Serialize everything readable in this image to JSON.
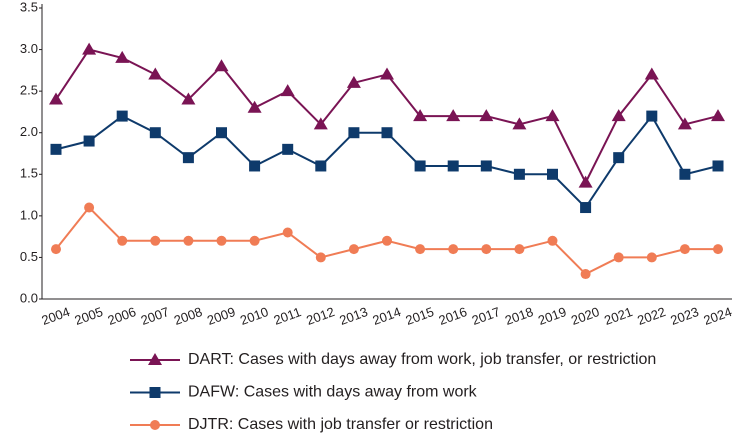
{
  "chart_data": {
    "type": "line",
    "categories": [
      "2004",
      "2005",
      "2006",
      "2007",
      "2008",
      "2009",
      "2010",
      "2011",
      "2012",
      "2013",
      "2014",
      "2015",
      "2016",
      "2017",
      "2018",
      "2019",
      "2020",
      "2021",
      "2022",
      "2023",
      "2024"
    ],
    "series": [
      {
        "name": "DART: Cases with days away from work, job transfer, or restriction",
        "color": "#7a1454",
        "marker": "triangle",
        "values": [
          2.4,
          3.0,
          2.9,
          2.7,
          2.4,
          2.8,
          2.3,
          2.5,
          2.1,
          2.6,
          2.7,
          2.2,
          2.2,
          2.2,
          2.1,
          2.2,
          1.4,
          2.2,
          2.7,
          2.1,
          2.2
        ]
      },
      {
        "name": "DAFW: Cases with days away from work",
        "color": "#0e3a6b",
        "marker": "square",
        "values": [
          1.8,
          1.9,
          2.2,
          2.0,
          1.7,
          2.0,
          1.6,
          1.8,
          1.6,
          2.0,
          2.0,
          1.6,
          1.6,
          1.6,
          1.5,
          1.5,
          1.1,
          1.7,
          2.2,
          1.5,
          1.6
        ]
      },
      {
        "name": "DJTR: Cases with job transfer or restriction",
        "color": "#f07c55",
        "marker": "circle",
        "values": [
          0.6,
          1.1,
          0.7,
          0.7,
          0.7,
          0.7,
          0.7,
          0.8,
          0.5,
          0.6,
          0.7,
          0.6,
          0.6,
          0.6,
          0.6,
          0.7,
          0.3,
          0.5,
          0.5,
          0.6,
          0.6
        ]
      }
    ],
    "ylim": [
      0,
      3.5
    ],
    "yticks": [
      {
        "value": 0,
        "label": "0.0"
      },
      0.5,
      {
        "value": 1,
        "label": "1.0"
      },
      1.5,
      {
        "value": 2,
        "label": "2.0"
      },
      2.5,
      {
        "value": 3,
        "label": "3.0"
      },
      3.5
    ],
    "grid": false,
    "legend": "bottom"
  }
}
